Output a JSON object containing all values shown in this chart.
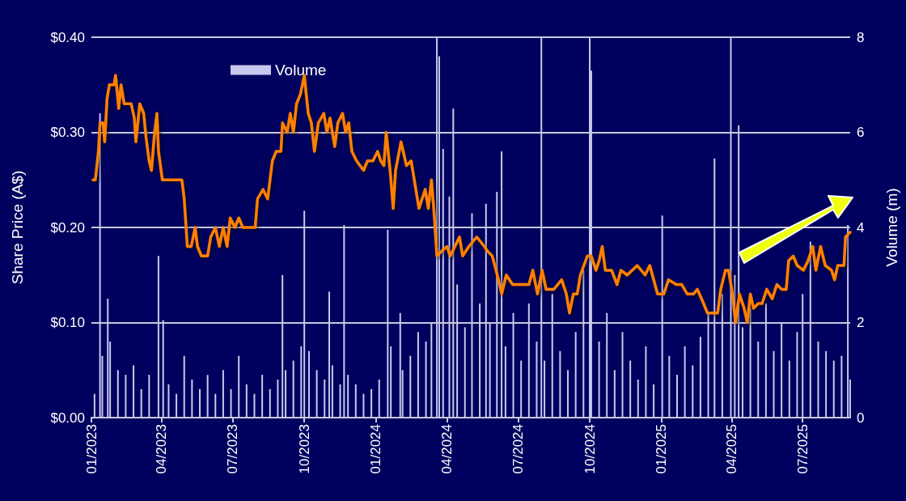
{
  "chart_data": {
    "type": "line",
    "ylabel": "Share Price (A$)",
    "y2label": "Volume (m)",
    "grid": "y",
    "legend": "top",
    "marker": "none",
    "line_style": "solid",
    "xlim": [
      "2023-01-01",
      "2025-08-31"
    ],
    "xticks": [
      {
        "value": "2023-01-01",
        "label": "01/2023"
      },
      {
        "value": "2023-04-01",
        "label": "04/2023"
      },
      {
        "value": "2023-07-01",
        "label": "07/2023"
      },
      {
        "value": "2023-10-01",
        "label": "10/2023"
      },
      {
        "value": "2024-01-01",
        "label": "01/2024"
      },
      {
        "value": "2024-04-01",
        "label": "04/2024"
      },
      {
        "value": "2024-07-01",
        "label": "07/2024"
      },
      {
        "value": "2024-10-01",
        "label": "10/2024"
      },
      {
        "value": "2025-01-01",
        "label": "01/2025"
      },
      {
        "value": "2025-04-01",
        "label": "04/2025"
      },
      {
        "value": "2025-07-01",
        "label": "07/2025"
      }
    ],
    "ylim": [
      0,
      0.4
    ],
    "yticks": [
      {
        "value": 0,
        "label": "$0.00"
      },
      {
        "value": 0.1,
        "label": "$0.10"
      },
      {
        "value": 0.2,
        "label": "$0.20"
      },
      {
        "value": 0.3,
        "label": "$0.30"
      },
      {
        "value": 0.4,
        "label": "$0.40"
      }
    ],
    "y2lim": [
      0,
      8
    ],
    "y2ticks": [
      0,
      2,
      4,
      6,
      8
    ],
    "series": [
      {
        "type": "bar",
        "axis": "y2",
        "name": "Volume",
        "color": "#c8c8ee",
        "x": [
          "2023-01-05",
          "2023-01-12",
          "2023-01-15",
          "2023-01-22",
          "2023-01-25",
          "2023-02-04",
          "2023-02-14",
          "2023-02-24",
          "2023-03-06",
          "2023-03-16",
          "2023-03-28",
          "2023-04-03",
          "2023-04-10",
          "2023-04-20",
          "2023-04-30",
          "2023-05-10",
          "2023-05-20",
          "2023-05-30",
          "2023-06-09",
          "2023-06-19",
          "2023-06-29",
          "2023-07-09",
          "2023-07-19",
          "2023-07-29",
          "2023-08-08",
          "2023-08-18",
          "2023-08-28",
          "2023-09-03",
          "2023-09-07",
          "2023-09-17",
          "2023-09-27",
          "2023-10-01",
          "2023-10-07",
          "2023-10-17",
          "2023-10-27",
          "2023-11-02",
          "2023-11-06",
          "2023-11-16",
          "2023-11-21",
          "2023-11-26",
          "2023-12-06",
          "2023-12-16",
          "2023-12-26",
          "2024-01-05",
          "2024-01-16",
          "2024-01-20",
          "2024-02-01",
          "2024-02-04",
          "2024-02-14",
          "2024-02-24",
          "2024-03-05",
          "2024-03-12",
          "2024-03-19",
          "2024-03-22",
          "2024-03-27",
          "2024-04-04",
          "2024-04-09",
          "2024-04-14",
          "2024-04-24",
          "2024-05-03",
          "2024-05-13",
          "2024-05-21",
          "2024-05-26",
          "2024-06-04",
          "2024-06-10",
          "2024-06-15",
          "2024-06-25",
          "2024-07-05",
          "2024-07-15",
          "2024-07-25",
          "2024-07-31",
          "2024-08-04",
          "2024-08-14",
          "2024-08-24",
          "2024-09-03",
          "2024-09-13",
          "2024-09-23",
          "2024-10-01",
          "2024-10-03",
          "2024-10-13",
          "2024-10-23",
          "2024-11-02",
          "2024-11-12",
          "2024-11-22",
          "2024-12-02",
          "2024-12-12",
          "2024-12-22",
          "2025-01-02",
          "2025-01-11",
          "2025-01-21",
          "2025-01-31",
          "2025-02-10",
          "2025-02-20",
          "2025-03-02",
          "2025-03-10",
          "2025-03-20",
          "2025-03-31",
          "2025-04-05",
          "2025-04-10",
          "2025-04-15",
          "2025-04-25",
          "2025-05-05",
          "2025-05-15",
          "2025-05-25",
          "2025-06-04",
          "2025-06-14",
          "2025-06-24",
          "2025-07-01",
          "2025-07-11",
          "2025-07-21",
          "2025-07-31",
          "2025-08-10",
          "2025-08-20",
          "2025-08-28",
          "2025-08-31"
        ],
        "values": [
          0.5,
          6.4,
          1.3,
          2.5,
          1.6,
          1.0,
          0.9,
          1.1,
          0.6,
          0.9,
          3.4,
          2.05,
          0.7,
          0.5,
          1.3,
          0.8,
          0.6,
          0.9,
          0.5,
          1.0,
          0.6,
          1.3,
          0.7,
          0.5,
          0.9,
          0.6,
          0.8,
          3.0,
          1.0,
          1.2,
          1.5,
          4.35,
          1.4,
          1.0,
          0.8,
          2.65,
          1.1,
          0.7,
          4.05,
          0.9,
          0.7,
          0.5,
          0.6,
          0.8,
          3.95,
          1.5,
          2.2,
          1.0,
          1.3,
          1.8,
          1.6,
          2.0,
          8.0,
          7.6,
          5.65,
          4.65,
          6.5,
          2.8,
          1.9,
          4.3,
          2.4,
          4.5,
          2.0,
          4.75,
          5.6,
          1.5,
          2.2,
          1.2,
          2.4,
          1.6,
          8.0,
          1.2,
          2.6,
          1.4,
          1.0,
          1.8,
          3.1,
          8.0,
          7.3,
          1.6,
          2.2,
          1.0,
          1.8,
          1.2,
          0.8,
          1.5,
          0.7,
          4.25,
          1.3,
          0.9,
          1.5,
          1.1,
          1.7,
          2.2,
          5.45,
          2.6,
          8.0,
          3.0,
          6.15,
          1.9,
          2.3,
          1.6,
          2.4,
          1.4,
          2.0,
          1.2,
          1.8,
          2.6,
          3.7,
          1.6,
          1.4,
          1.2,
          1.3,
          4.05,
          0.8
        ]
      },
      {
        "color": "#ff8000",
        "x": [
          "2023-01-03",
          "2023-01-06",
          "2023-01-10",
          "2023-01-12",
          "2023-01-16",
          "2023-01-18",
          "2023-01-21",
          "2023-01-24",
          "2023-01-30",
          "2023-02-01",
          "2023-02-05",
          "2023-02-08",
          "2023-02-12",
          "2023-02-21",
          "2023-02-25",
          "2023-02-27",
          "2023-03-04",
          "2023-03-09",
          "2023-03-12",
          "2023-03-16",
          "2023-03-19",
          "2023-03-23",
          "2023-03-26",
          "2023-03-28",
          "2023-04-02",
          "2023-04-27",
          "2023-04-30",
          "2023-05-04",
          "2023-05-09",
          "2023-05-14",
          "2023-05-17",
          "2023-05-22",
          "2023-05-30",
          "2023-06-03",
          "2023-06-09",
          "2023-06-14",
          "2023-06-19",
          "2023-06-24",
          "2023-06-28",
          "2023-07-04",
          "2023-07-09",
          "2023-07-14",
          "2023-07-30",
          "2023-08-02",
          "2023-08-09",
          "2023-08-15",
          "2023-08-21",
          "2023-08-26",
          "2023-09-01",
          "2023-09-03",
          "2023-09-09",
          "2023-09-13",
          "2023-09-17",
          "2023-09-21",
          "2023-09-26",
          "2023-10-01",
          "2023-10-06",
          "2023-10-10",
          "2023-10-14",
          "2023-10-19",
          "2023-10-26",
          "2023-10-30",
          "2023-11-03",
          "2023-11-09",
          "2023-11-13",
          "2023-11-19",
          "2023-11-23",
          "2023-11-27",
          "2023-12-01",
          "2023-12-07",
          "2023-12-16",
          "2023-12-21",
          "2023-12-28",
          "2024-01-03",
          "2024-01-07",
          "2024-01-11",
          "2024-01-14",
          "2024-01-19",
          "2024-01-23",
          "2024-01-26",
          "2024-02-02",
          "2024-02-09",
          "2024-02-15",
          "2024-02-20",
          "2024-02-25",
          "2024-02-29",
          "2024-03-04",
          "2024-03-08",
          "2024-03-12",
          "2024-03-15",
          "2024-03-19",
          "2024-03-25",
          "2024-04-01",
          "2024-04-05",
          "2024-04-11",
          "2024-04-17",
          "2024-04-21",
          "2024-04-29",
          "2024-05-09",
          "2024-05-19",
          "2024-05-23",
          "2024-05-29",
          "2024-06-06",
          "2024-06-10",
          "2024-06-16",
          "2024-06-24",
          "2024-07-15",
          "2024-07-20",
          "2024-07-26",
          "2024-08-01",
          "2024-08-06",
          "2024-08-16",
          "2024-08-26",
          "2024-09-01",
          "2024-09-05",
          "2024-09-10",
          "2024-09-15",
          "2024-09-19",
          "2024-09-28",
          "2024-10-03",
          "2024-10-09",
          "2024-10-13",
          "2024-10-17",
          "2024-10-21",
          "2024-10-29",
          "2024-11-05",
          "2024-11-10",
          "2024-11-18",
          "2024-12-01",
          "2024-12-11",
          "2024-12-17",
          "2024-12-27",
          "2025-01-04",
          "2025-01-10",
          "2025-01-20",
          "2025-01-27",
          "2025-02-03",
          "2025-02-11",
          "2025-02-16",
          "2025-02-24",
          "2025-03-01",
          "2025-03-14",
          "2025-03-18",
          "2025-03-24",
          "2025-03-28",
          "2025-04-02",
          "2025-04-06",
          "2025-04-11",
          "2025-04-17",
          "2025-04-21",
          "2025-04-25",
          "2025-04-29",
          "2025-05-05",
          "2025-05-10",
          "2025-05-16",
          "2025-05-23",
          "2025-05-29",
          "2025-06-04",
          "2025-06-10",
          "2025-06-13",
          "2025-06-19",
          "2025-06-24",
          "2025-07-02",
          "2025-07-08",
          "2025-07-14",
          "2025-07-18",
          "2025-07-24",
          "2025-07-30",
          "2025-08-07",
          "2025-08-11",
          "2025-08-15",
          "2025-08-23",
          "2025-08-25",
          "2025-08-31"
        ],
        "values": [
          0.25,
          0.25,
          0.28,
          0.31,
          0.31,
          0.29,
          0.335,
          0.35,
          0.35,
          0.36,
          0.325,
          0.35,
          0.33,
          0.33,
          0.315,
          0.29,
          0.33,
          0.32,
          0.295,
          0.27,
          0.26,
          0.3,
          0.32,
          0.28,
          0.25,
          0.25,
          0.23,
          0.18,
          0.18,
          0.2,
          0.18,
          0.17,
          0.17,
          0.19,
          0.2,
          0.18,
          0.2,
          0.18,
          0.21,
          0.2,
          0.21,
          0.2,
          0.2,
          0.23,
          0.24,
          0.23,
          0.27,
          0.28,
          0.28,
          0.31,
          0.3,
          0.32,
          0.3,
          0.33,
          0.34,
          0.36,
          0.32,
          0.31,
          0.28,
          0.31,
          0.32,
          0.3,
          0.315,
          0.285,
          0.31,
          0.32,
          0.3,
          0.31,
          0.28,
          0.27,
          0.26,
          0.27,
          0.27,
          0.28,
          0.27,
          0.265,
          0.3,
          0.26,
          0.22,
          0.26,
          0.29,
          0.265,
          0.27,
          0.245,
          0.22,
          0.23,
          0.24,
          0.22,
          0.25,
          0.22,
          0.17,
          0.175,
          0.18,
          0.17,
          0.18,
          0.19,
          0.17,
          0.18,
          0.19,
          0.18,
          0.175,
          0.17,
          0.145,
          0.13,
          0.15,
          0.14,
          0.14,
          0.155,
          0.13,
          0.155,
          0.135,
          0.135,
          0.145,
          0.13,
          0.11,
          0.13,
          0.13,
          0.15,
          0.17,
          0.17,
          0.155,
          0.165,
          0.18,
          0.155,
          0.155,
          0.14,
          0.155,
          0.15,
          0.16,
          0.15,
          0.16,
          0.13,
          0.13,
          0.145,
          0.14,
          0.14,
          0.13,
          0.13,
          0.135,
          0.12,
          0.11,
          0.11,
          0.135,
          0.155,
          0.155,
          0.13,
          0.1,
          0.13,
          0.115,
          0.1,
          0.13,
          0.115,
          0.12,
          0.12,
          0.135,
          0.125,
          0.14,
          0.135,
          0.135,
          0.165,
          0.17,
          0.16,
          0.155,
          0.165,
          0.18,
          0.155,
          0.18,
          0.16,
          0.155,
          0.145,
          0.16,
          0.16,
          0.19,
          0.195
        ]
      }
    ]
  }
}
